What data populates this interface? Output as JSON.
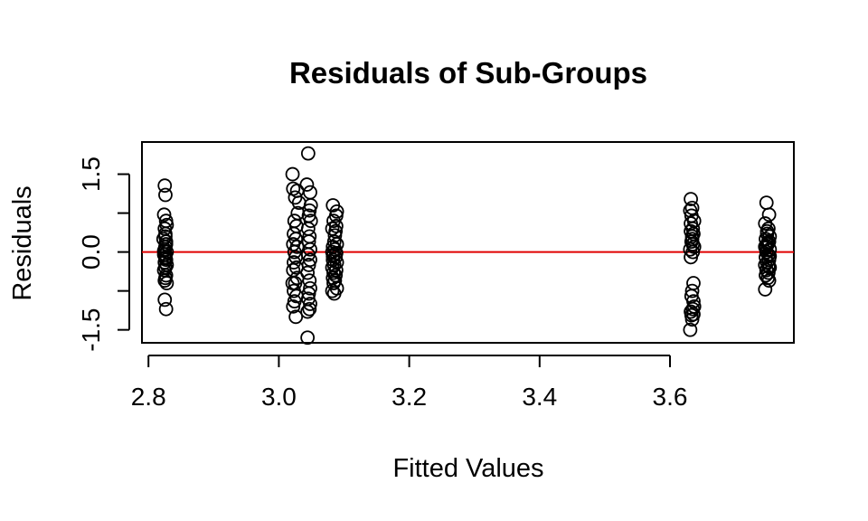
{
  "chart_data": {
    "type": "scatter",
    "title": "Residuals of Sub-Groups",
    "xlabel": "Fitted Values",
    "ylabel": "Residuals",
    "xlim": [
      2.79,
      3.79
    ],
    "ylim": [
      -1.75,
      2.12
    ],
    "x_ticks": [
      2.8,
      3.0,
      3.2,
      3.4,
      3.6
    ],
    "x_tick_labels": [
      "2.8",
      "3.0",
      "3.2",
      "3.4",
      "3.6"
    ],
    "y_ticks": [
      -1.5,
      0.0,
      1.5
    ],
    "y_tick_labels": [
      "-1.5",
      "0.0",
      "1.5"
    ],
    "reference_line": {
      "y": 0.0,
      "color": "#e00000"
    },
    "point_color": "#000000",
    "grid": false,
    "legend": "none",
    "series": [
      {
        "x": [
          2.825,
          2.826,
          2.824,
          2.827,
          2.828,
          2.825,
          2.826,
          2.823,
          2.827,
          2.826,
          2.825,
          2.828,
          2.824,
          2.826,
          2.827,
          2.825,
          2.828,
          2.826,
          2.824,
          2.827,
          2.826,
          2.825,
          2.828,
          2.826,
          2.827,
          2.824,
          2.826,
          2.825,
          2.827,
          2.826
        ],
        "y": [
          1.28,
          1.1,
          0.72,
          0.6,
          0.52,
          0.45,
          0.3,
          0.25,
          0.15,
          0.1,
          0.05,
          0.0,
          -0.05,
          -0.1,
          -0.15,
          -0.2,
          -0.25,
          -0.3,
          -0.35,
          -0.45,
          -0.5,
          -0.55,
          -0.6,
          -0.05,
          0.2,
          0.02,
          -0.12,
          -0.92,
          -1.1,
          0.35
        ]
      },
      {
        "x": [
          3.045,
          3.021,
          3.043,
          3.028,
          3.025,
          3.022,
          3.048,
          3.031,
          3.047,
          3.029,
          3.046,
          3.024,
          3.049,
          3.027,
          3.045,
          3.023,
          3.047,
          3.026,
          3.046,
          3.022,
          3.028,
          3.048,
          3.024,
          3.045,
          3.026,
          3.048,
          3.023,
          3.046,
          3.027,
          3.022,
          3.044,
          3.028,
          3.047,
          3.025,
          3.048,
          3.023,
          3.046,
          3.027,
          3.045,
          3.024,
          3.048,
          3.022,
          3.047,
          3.026,
          3.044,
          3.021,
          3.049,
          3.044
        ],
        "y": [
          1.9,
          1.5,
          1.3,
          1.18,
          1.05,
          1.22,
          1.15,
          0.95,
          0.8,
          0.75,
          0.7,
          0.6,
          0.6,
          0.5,
          0.45,
          0.35,
          0.3,
          0.25,
          0.2,
          0.15,
          0.1,
          0.05,
          0.0,
          -0.05,
          -0.1,
          -0.15,
          -0.2,
          -0.25,
          -0.3,
          -0.35,
          -0.4,
          -0.5,
          -0.55,
          -0.6,
          -0.7,
          -0.75,
          -0.8,
          -0.85,
          -0.9,
          -0.95,
          -1.0,
          -1.05,
          -1.1,
          -1.25,
          -1.15,
          -0.6,
          0.9,
          -1.65
        ]
      },
      {
        "x": [
          3.083,
          3.089,
          3.084,
          3.088,
          3.082,
          3.087,
          3.085,
          3.089,
          3.083,
          3.086,
          3.082,
          3.088,
          3.084,
          3.087,
          3.083,
          3.089,
          3.085,
          3.082,
          3.088,
          3.084,
          3.087,
          3.083,
          3.086,
          3.089,
          3.082,
          3.085,
          3.088,
          3.083,
          3.086,
          3.084
        ],
        "y": [
          0.9,
          0.78,
          0.6,
          0.5,
          0.45,
          0.4,
          0.2,
          0.15,
          0.1,
          0.05,
          0.0,
          -0.02,
          -0.05,
          -0.1,
          -0.15,
          -0.2,
          -0.25,
          -0.3,
          -0.35,
          -0.4,
          -0.45,
          -0.5,
          -0.55,
          -0.7,
          -0.75,
          -0.8,
          0.7,
          -0.08,
          0.32,
          -0.6
        ]
      },
      {
        "x": [
          3.632,
          3.634,
          3.631,
          3.633,
          3.637,
          3.635,
          3.632,
          3.636,
          3.634,
          3.633,
          3.637,
          3.631,
          3.635,
          3.632,
          3.636,
          3.634,
          3.633,
          3.637,
          3.635,
          3.632,
          3.636,
          3.634,
          3.631,
          3.635,
          3.632,
          3.636,
          3.633,
          3.634
        ],
        "y": [
          1.02,
          0.85,
          0.8,
          0.7,
          0.6,
          0.45,
          0.4,
          0.35,
          0.3,
          0.2,
          0.1,
          0.05,
          0.0,
          -0.1,
          -0.6,
          -0.75,
          -0.85,
          -1.05,
          -1.1,
          -1.15,
          -1.2,
          -1.3,
          -1.5,
          0.15,
          0.55,
          -0.95,
          -1.22,
          0.25
        ]
      },
      {
        "x": [
          3.748,
          3.752,
          3.746,
          3.751,
          3.749,
          3.753,
          3.747,
          3.752,
          3.75,
          3.746,
          3.753,
          3.748,
          3.751,
          3.747,
          3.752,
          3.749,
          3.746,
          3.753,
          3.748,
          3.751,
          3.747,
          3.75,
          3.752,
          3.746,
          3.749,
          3.753,
          3.748,
          3.751,
          3.747,
          3.75
        ],
        "y": [
          0.95,
          0.72,
          0.55,
          0.45,
          0.35,
          0.3,
          0.25,
          0.2,
          0.15,
          0.1,
          0.05,
          0.0,
          -0.05,
          -0.1,
          -0.15,
          -0.2,
          -0.25,
          -0.3,
          -0.35,
          -0.4,
          -0.45,
          -0.5,
          -0.55,
          -0.72,
          0.4,
          -0.08,
          0.12,
          -0.28,
          0.08,
          0.18
        ]
      }
    ]
  }
}
